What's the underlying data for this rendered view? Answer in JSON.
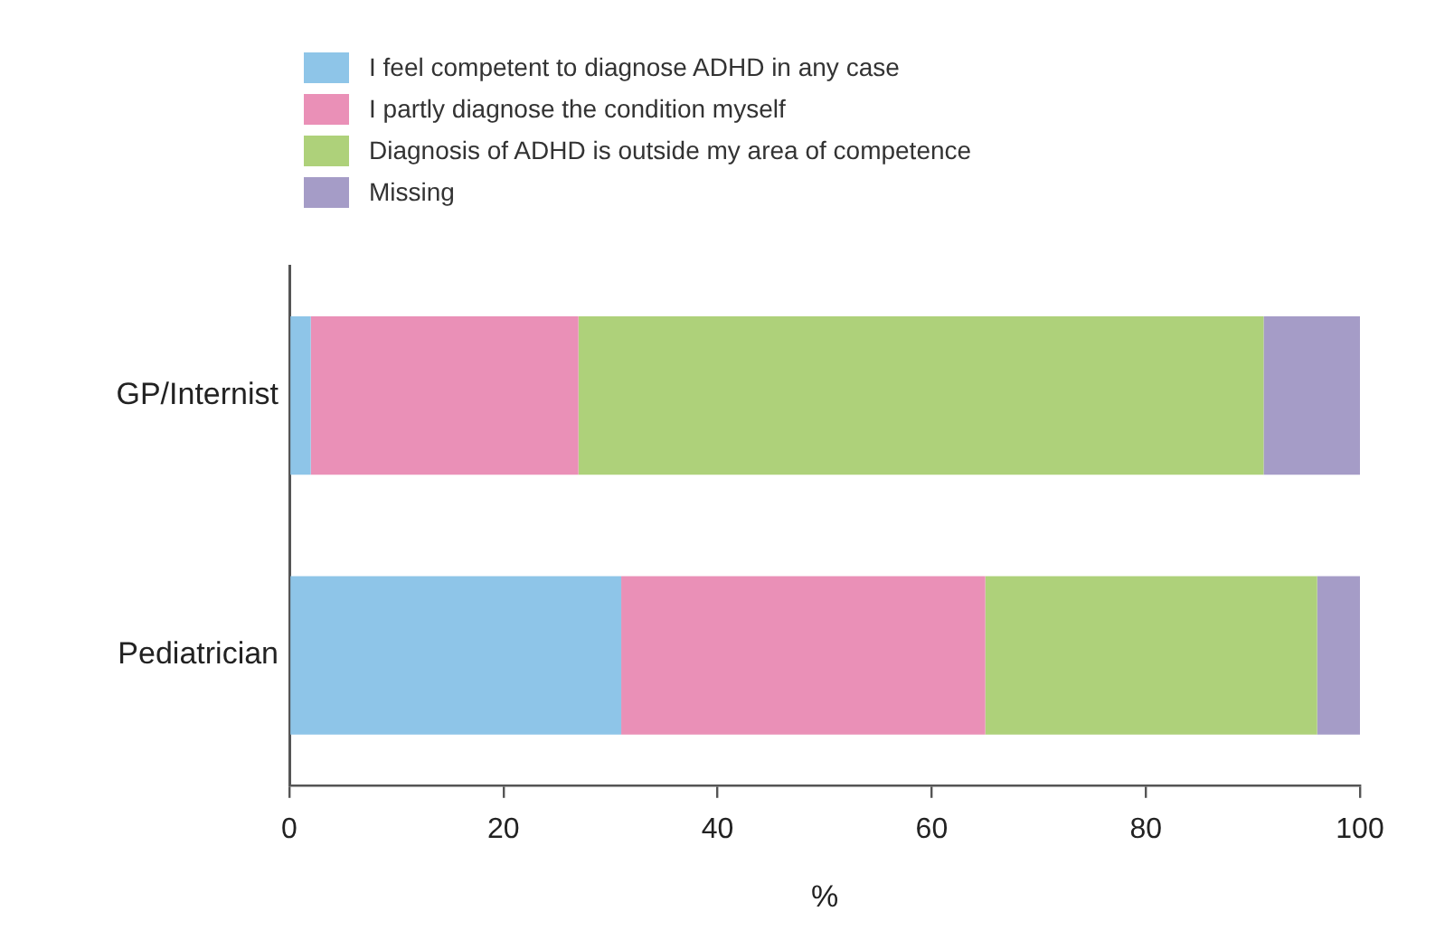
{
  "chart_data": {
    "type": "bar",
    "orientation": "horizontal",
    "stacked": true,
    "categories": [
      "GP/Internist",
      "Pediatrician"
    ],
    "series": [
      {
        "name": "I feel competent to diagnose ADHD in any case",
        "color": "#8ec5e8",
        "values": [
          2,
          31
        ]
      },
      {
        "name": "I partly diagnose the condition myself",
        "color": "#ea90b7",
        "values": [
          25,
          34
        ]
      },
      {
        "name": "Diagnosis of ADHD is outside my area of competence",
        "color": "#aed17a",
        "values": [
          64,
          31
        ]
      },
      {
        "name": "Missing",
        "color": "#a59cc7",
        "values": [
          9,
          4
        ]
      }
    ],
    "xlim": [
      0,
      100
    ],
    "xticks": [
      0,
      20,
      40,
      60,
      80,
      100
    ],
    "xlabel": "%",
    "legend": "top left",
    "grid": false
  }
}
